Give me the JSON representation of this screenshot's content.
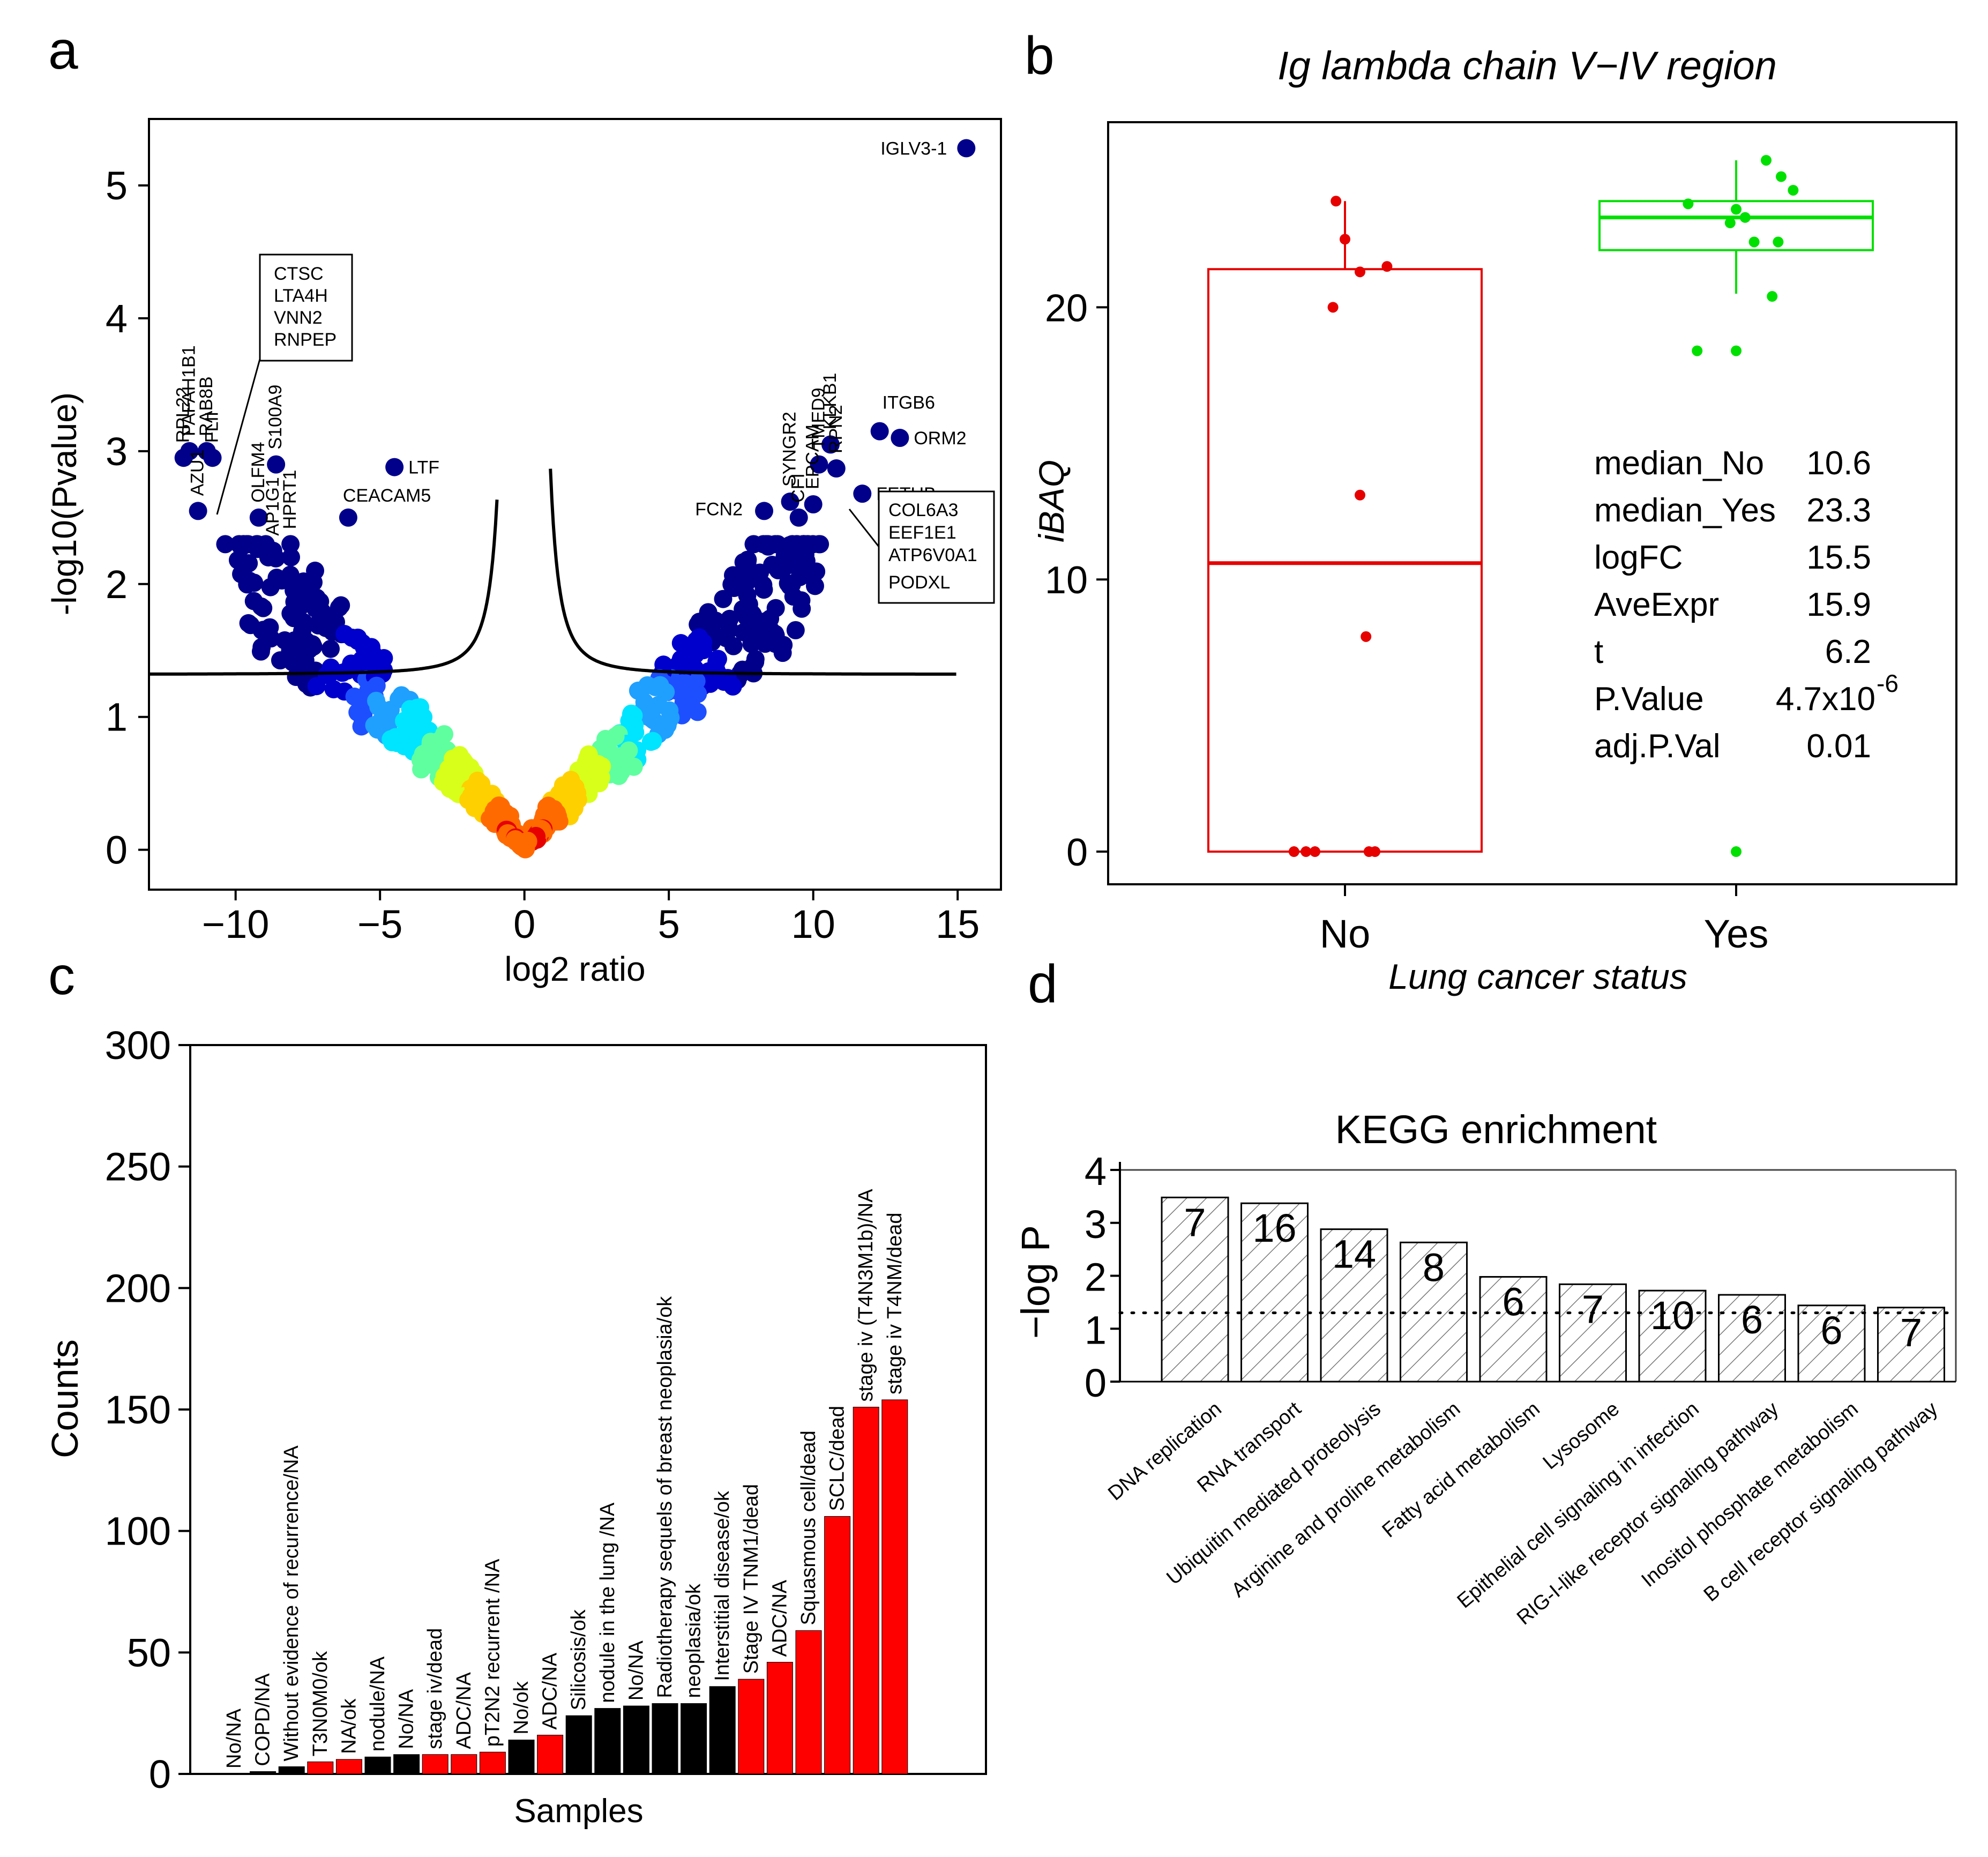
{
  "panels": {
    "a": {
      "label": "a",
      "chart_data": {
        "type": "scatter",
        "title": "",
        "xlabel": "log2 ratio",
        "ylabel": "-log10(Pvalue)",
        "xlim": [
          -13,
          16.5
        ],
        "ylim": [
          -0.3,
          5.5
        ],
        "xticks": [
          -10,
          -5,
          0,
          5,
          10,
          15
        ],
        "yticks": [
          0,
          1,
          2,
          3,
          4,
          5
        ],
        "xtick_labels": [
          "−10",
          "−5",
          "0",
          "5",
          "10",
          "15"
        ],
        "ytick_labels": [
          "0",
          "1",
          "2",
          "3",
          "4",
          "5"
        ],
        "threshold_y": 1.32,
        "labeled_points": [
          {
            "label": "IGLV3-1",
            "x": 15.3,
            "y": 5.28
          },
          {
            "label": "ITGB6",
            "x": 12.3,
            "y": 3.15
          },
          {
            "label": "ORM2",
            "x": 13.0,
            "y": 3.1
          },
          {
            "label": "KLKB1",
            "x": 10.6,
            "y": 3.05
          },
          {
            "label": "TMED9",
            "x": 10.2,
            "y": 2.9
          },
          {
            "label": "RPN2",
            "x": 10.8,
            "y": 2.87
          },
          {
            "label": "FETUB",
            "x": 11.7,
            "y": 2.68
          },
          {
            "label": "EPCAM",
            "x": 10.0,
            "y": 2.6
          },
          {
            "label": "SYNGR2",
            "x": 9.2,
            "y": 2.62
          },
          {
            "label": "CFI",
            "x": 9.5,
            "y": 2.5
          },
          {
            "label": "FCN2",
            "x": 8.3,
            "y": 2.55
          },
          {
            "label": "LTF",
            "x": -4.5,
            "y": 2.88
          },
          {
            "label": "CEACAM5",
            "x": -6.1,
            "y": 2.5
          },
          {
            "label": "RPL22",
            "x": -11.8,
            "y": 2.95
          },
          {
            "label": "PAFAH1B1",
            "x": -11.6,
            "y": 3.0
          },
          {
            "label": "RAB8B",
            "x": -11.0,
            "y": 3.0
          },
          {
            "label": "FLII",
            "x": -10.8,
            "y": 2.95
          },
          {
            "label": "AZU1",
            "x": -11.3,
            "y": 2.55
          },
          {
            "label": "OLFM4",
            "x": -9.2,
            "y": 2.5
          },
          {
            "label": "AP1G1",
            "x": -8.7,
            "y": 2.25
          },
          {
            "label": "S100A9",
            "x": -8.6,
            "y": 2.9
          },
          {
            "label": "HPRT1",
            "x": -8.1,
            "y": 2.3
          }
        ],
        "box_labels_left": [
          "CTSC",
          "LTA4H",
          "VNN2",
          "RNPEP"
        ],
        "box_labels_right": [
          "COL6A3",
          "EEF1E1",
          "ATP6V0A1",
          "PODXL"
        ],
        "color_scale": [
          "#00008b",
          "#0000cd",
          "#1e4fff",
          "#1fa0ff",
          "#00e5ff",
          "#5fff9f",
          "#d8ff1a",
          "#ffd000",
          "#ff6a00",
          "#e60000"
        ]
      }
    },
    "b": {
      "label": "b",
      "chart_data": {
        "type": "box",
        "title": "Ig lambda chain V−IV region",
        "xlabel": "Lung cancer status",
        "ylabel": "iBAQ",
        "categories": [
          "No",
          "Yes"
        ],
        "ylim": [
          -1.2,
          26.8
        ],
        "yticks": [
          0,
          10,
          20
        ],
        "boxes": [
          {
            "name": "No",
            "q1": 0,
            "median": 10.6,
            "q3": 21.4,
            "whisker_low": 0,
            "whisker_high": 23.9,
            "color": "#e60000",
            "points": [
              [
                -0.17,
                0
              ],
              [
                -0.13,
                0
              ],
              [
                -0.1,
                0
              ],
              [
                0.08,
                0
              ],
              [
                0.1,
                0
              ],
              [
                0.07,
                7.9
              ],
              [
                0.05,
                13.1
              ],
              [
                -0.04,
                20.0
              ],
              [
                0.05,
                21.3
              ],
              [
                0.14,
                21.5
              ],
              [
                0.0,
                22.5
              ],
              [
                -0.03,
                23.9
              ]
            ]
          },
          {
            "name": "Yes",
            "q1": 22.1,
            "median": 23.3,
            "q3": 23.9,
            "whisker_low": 20.5,
            "whisker_high": 25.4,
            "color": "#00e000",
            "points": [
              [
                0.0,
                0
              ],
              [
                -0.13,
                18.4
              ],
              [
                0.0,
                18.4
              ],
              [
                0.12,
                20.4
              ],
              [
                -0.16,
                23.8
              ],
              [
                0.0,
                23.6
              ],
              [
                0.03,
                23.3
              ],
              [
                -0.02,
                23.1
              ],
              [
                0.06,
                22.4
              ],
              [
                0.14,
                22.4
              ],
              [
                0.19,
                24.3
              ],
              [
                0.15,
                24.8
              ],
              [
                0.1,
                25.4
              ]
            ]
          }
        ],
        "stats": [
          {
            "name": "median_No",
            "value": "10.6"
          },
          {
            "name": "median_Yes",
            "value": "23.3"
          },
          {
            "name": "logFC",
            "value": "15.5"
          },
          {
            "name": "AveExpr",
            "value": "15.9"
          },
          {
            "name": "t",
            "value": "6.2"
          },
          {
            "name": "P.Value",
            "value": "4.7x10",
            "sup": "-6"
          },
          {
            "name": "adj.P.Val",
            "value": "0.01"
          }
        ]
      }
    },
    "c": {
      "label": "c",
      "chart_data": {
        "type": "bar",
        "title": "",
        "xlabel": "Samples",
        "ylabel": "Counts",
        "ylim": [
          0,
          300
        ],
        "yticks": [
          0,
          50,
          100,
          150,
          200,
          250,
          300
        ],
        "categories": [
          "No/NA",
          "COPD/NA",
          "Without evidence of recurrence/NA",
          "T3N0M0/ok",
          "NA/ok",
          "nodule/NA",
          "No/NA",
          "stage iv/dead",
          "ADC/NA",
          "pT2N2 recurrent /NA",
          "No/ok",
          "ADC/NA",
          "Silicosis/ok",
          "nodule in the lung /NA",
          "No/NA",
          "Radiotherapy sequels of breast neoplasia/ok",
          "neoplasia/ok",
          "Interstitial disease/ok",
          "Stage IV TNM1/dead",
          "ADC/NA",
          "Squasmous cell/dead",
          "SCLC/dead",
          "stage iv (T4N3M1b)/NA",
          "stage iv T4NM/dead"
        ],
        "values": [
          0,
          1,
          3,
          5,
          6,
          7,
          8,
          8,
          8,
          9,
          14,
          16,
          24,
          27,
          28,
          29,
          29,
          36,
          39,
          46,
          59,
          106,
          151,
          154
        ],
        "colors": [
          "#000000",
          "#000000",
          "#000000",
          "#ff0000",
          "#ff0000",
          "#000000",
          "#000000",
          "#ff0000",
          "#ff0000",
          "#ff0000",
          "#000000",
          "#ff0000",
          "#000000",
          "#000000",
          "#000000",
          "#000000",
          "#000000",
          "#000000",
          "#ff0000",
          "#ff0000",
          "#ff0000",
          "#ff0000",
          "#ff0000",
          "#ff0000"
        ]
      }
    },
    "d": {
      "label": "d",
      "chart_data": {
        "type": "bar",
        "title": "KEGG enrichment",
        "xlabel": "",
        "ylabel": "−log P",
        "ylim": [
          0,
          4
        ],
        "yticks": [
          0,
          1,
          2,
          3,
          4
        ],
        "threshold": 1.3,
        "categories": [
          "DNA replication",
          "RNA transport",
          "Ubiquitin mediated proteolysis",
          "Arginine and proline metabolism",
          "Fatty acid metabolism",
          "Lysosome",
          "Epithelial cell signaling in infection",
          "RIG-I-like receptor signaling pathway",
          "Inositol phosphate metabolism",
          "B cell receptor signaling pathway"
        ],
        "values": [
          3.48,
          3.37,
          2.88,
          2.63,
          1.98,
          1.84,
          1.72,
          1.64,
          1.44,
          1.4
        ],
        "counts": [
          "7",
          "16",
          "14",
          "8",
          "6",
          "7",
          "10",
          "6",
          "6",
          "7"
        ]
      }
    }
  }
}
